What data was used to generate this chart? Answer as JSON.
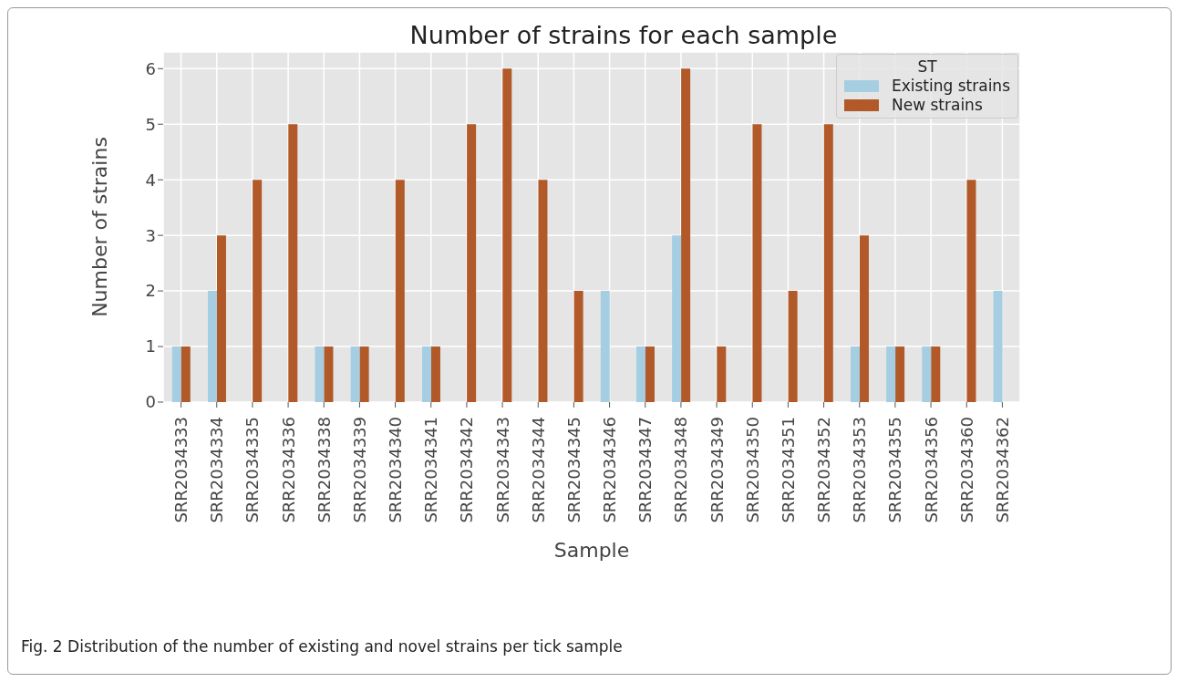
{
  "chart_data": {
    "type": "bar",
    "title": "Number of strains for each sample",
    "xlabel": "Sample",
    "ylabel": "Number of strains",
    "legend_title": "ST",
    "categories": [
      "SRR2034333",
      "SRR2034334",
      "SRR2034335",
      "SRR2034336",
      "SRR2034338",
      "SRR2034339",
      "SRR2034340",
      "SRR2034341",
      "SRR2034342",
      "SRR2034343",
      "SRR2034344",
      "SRR2034345",
      "SRR2034346",
      "SRR2034347",
      "SRR2034348",
      "SRR2034349",
      "SRR2034350",
      "SRR2034351",
      "SRR2034352",
      "SRR2034353",
      "SRR2034355",
      "SRR2034356",
      "SRR2034360",
      "SRR2034362"
    ],
    "series": [
      {
        "name": "Existing strains",
        "color": "#a6cee3",
        "values": [
          1,
          2,
          0,
          0,
          1,
          1,
          0,
          1,
          0,
          0,
          0,
          0,
          2,
          1,
          3,
          0,
          0,
          0,
          0,
          1,
          1,
          1,
          0,
          2
        ]
      },
      {
        "name": "New strains",
        "color": "#b15928",
        "values": [
          1,
          3,
          4,
          5,
          1,
          1,
          4,
          1,
          5,
          6,
          4,
          2,
          0,
          1,
          6,
          1,
          5,
          2,
          5,
          3,
          1,
          1,
          4,
          0
        ]
      }
    ],
    "ylim": [
      0,
      6.3
    ],
    "yticks": [
      0,
      1,
      2,
      3,
      4,
      5,
      6
    ],
    "grid": true,
    "legend": "top right",
    "annotations": [
      "Fig. 2 Distribution of the number of existing and novel strains per tick sample"
    ]
  }
}
